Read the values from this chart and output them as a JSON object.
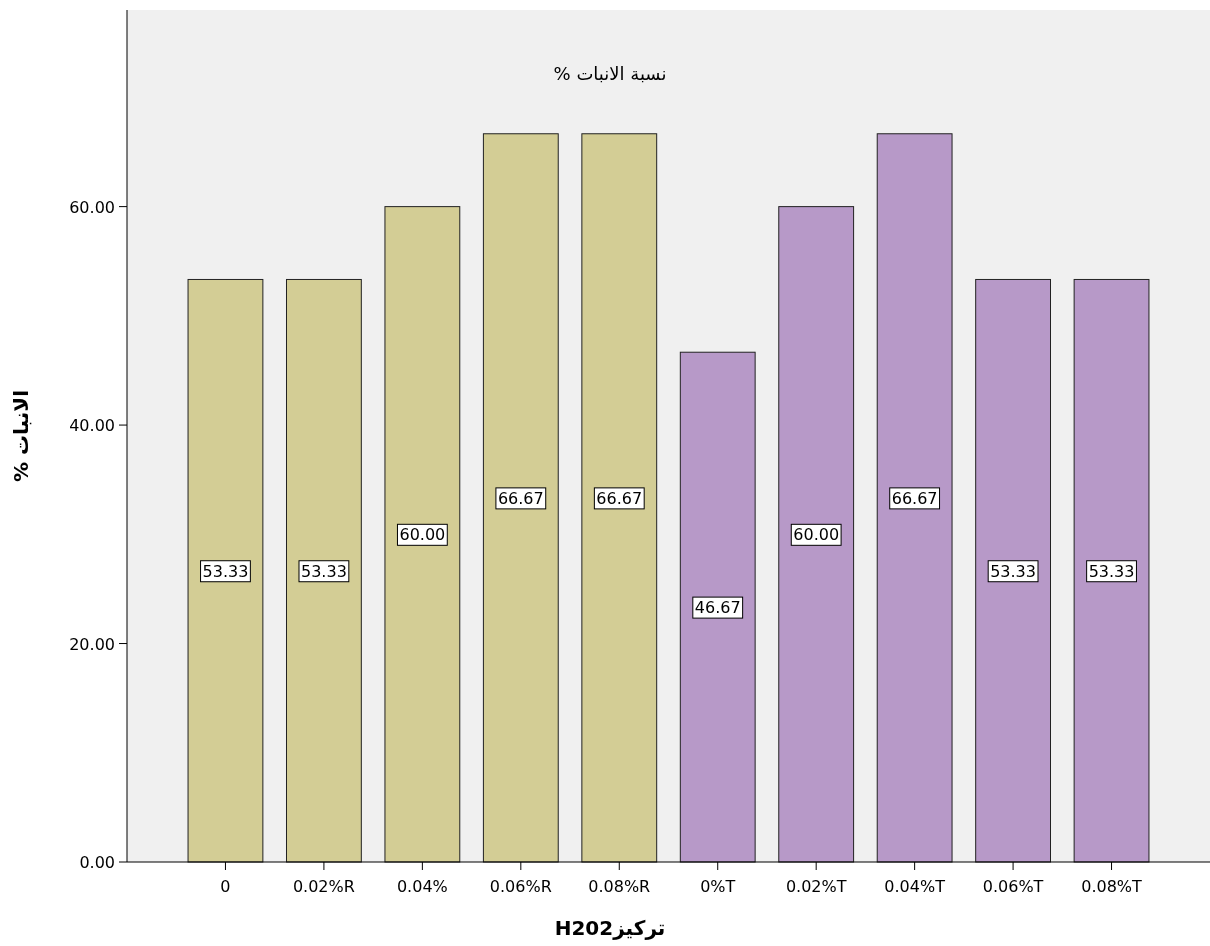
{
  "chart_data": {
    "type": "bar",
    "title": "نسبة الانبات %",
    "xlabel": "تركيزH202",
    "ylabel": "الانبات    %",
    "categories": [
      "0",
      "0.02%R",
      "0.04%",
      "0.06%R",
      "0.08%R",
      "0%T",
      "0.02%T",
      "0.04%T",
      "0.06%T",
      "0.08%T"
    ],
    "values": [
      53.33,
      53.33,
      60.0,
      66.67,
      66.67,
      46.67,
      60.0,
      66.67,
      53.33,
      53.33
    ],
    "colors": [
      "#d3cd95",
      "#d3cd95",
      "#d3cd95",
      "#d3cd95",
      "#d3cd95",
      "#b799c8",
      "#b799c8",
      "#b799c8",
      "#b799c8",
      "#b799c8"
    ],
    "ylim": [
      0,
      78
    ],
    "yticks": [
      {
        "value": 0,
        "label": "0.00"
      },
      {
        "value": 20,
        "label": "20.00"
      },
      {
        "value": 40,
        "label": "40.00"
      },
      {
        "value": 60,
        "label": "60.00"
      }
    ],
    "value_labels": [
      "53.33",
      "53.33",
      "60.00",
      "66.67",
      "66.67",
      "46.67",
      "60.00",
      "66.67",
      "53.33",
      "53.33"
    ],
    "grid": false
  }
}
